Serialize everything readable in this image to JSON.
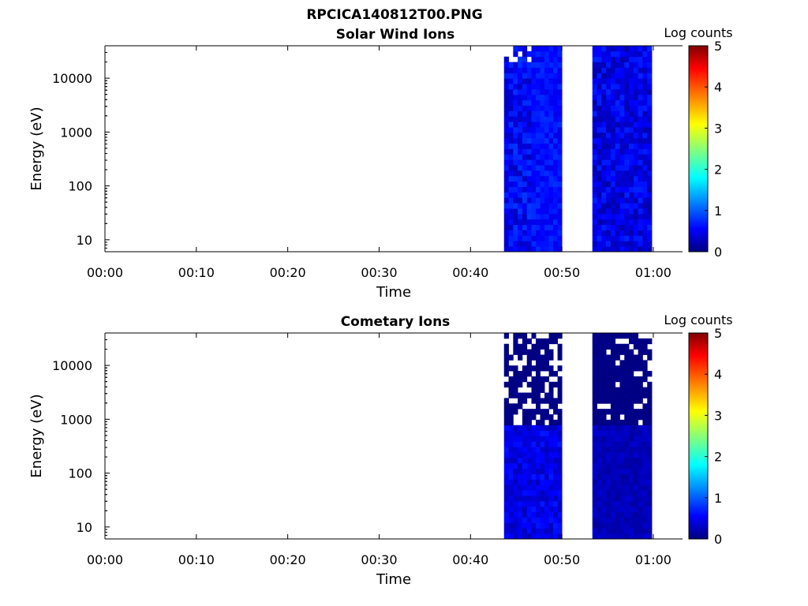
{
  "figure": {
    "title": "RPCICA140812T00.PNG"
  },
  "chart_data": [
    {
      "type": "heatmap",
      "title": "Solar Wind Ions",
      "xlabel": "Time",
      "ylabel": "Energy (eV)",
      "x_ticks": [
        "00:00",
        "00:10",
        "00:20",
        "00:30",
        "00:40",
        "00:50",
        "01:00"
      ],
      "x_range_minutes": [
        0,
        63.2
      ],
      "y_scale": "log",
      "y_ticks": [
        "10",
        "100",
        "1000",
        "10000"
      ],
      "y_range": [
        6,
        40000
      ],
      "colorbar": {
        "label": "Log counts",
        "range": [
          0,
          5
        ],
        "ticks": [
          "0",
          "1",
          "2",
          "3",
          "4",
          "5"
        ],
        "colormap": "jet"
      },
      "data_blocks": [
        {
          "t_start": "00:43:40",
          "t_end": "00:46:40",
          "level_range": [
            0.3,
            0.9
          ],
          "note": "speckled"
        },
        {
          "t_start": "00:46:40",
          "t_end": "00:50:00",
          "level_range": [
            0.5,
            0.85
          ]
        },
        {
          "t_start": "00:53:20",
          "t_end": "00:59:50",
          "level_range": [
            0.2,
            0.8
          ]
        }
      ]
    },
    {
      "type": "heatmap",
      "title": "Cometary Ions",
      "xlabel": "Time",
      "ylabel": "Energy (eV)",
      "x_ticks": [
        "00:00",
        "00:10",
        "00:20",
        "00:30",
        "00:40",
        "00:50",
        "01:00"
      ],
      "x_range_minutes": [
        0,
        63.2
      ],
      "y_scale": "log",
      "y_ticks": [
        "10",
        "100",
        "1000",
        "10000"
      ],
      "y_range": [
        6,
        40000
      ],
      "colorbar": {
        "label": "Log counts",
        "range": [
          0,
          5
        ],
        "ticks": [
          "0",
          "1",
          "2",
          "3",
          "4",
          "5"
        ],
        "colormap": "jet"
      },
      "data_blocks": [
        {
          "t_start": "00:43:40",
          "t_end": "00:46:40",
          "level_range": [
            0.0,
            0.7
          ],
          "note": "gaps at high energy"
        },
        {
          "t_start": "00:46:40",
          "t_end": "00:50:00",
          "level_range": [
            0.0,
            0.75
          ]
        },
        {
          "t_start": "00:53:20",
          "t_end": "00:59:50",
          "level_range": [
            0.0,
            0.4
          ]
        }
      ]
    }
  ]
}
